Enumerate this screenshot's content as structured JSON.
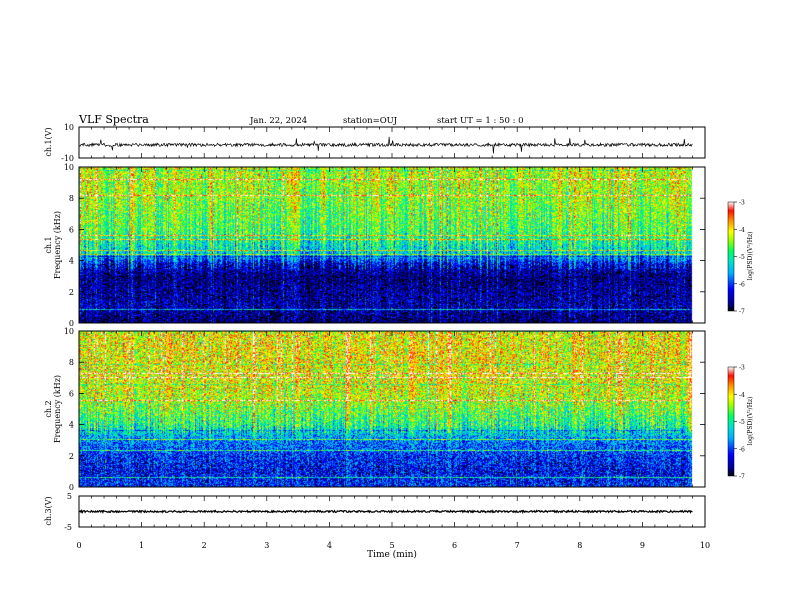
{
  "header": {
    "title": "VLF Spectra",
    "date": "Jan. 22, 2024",
    "station": "station=OUJ",
    "start": "start UT =  1 : 50 : 0"
  },
  "colors": {
    "axis": "#000000",
    "colormap": [
      "#000080",
      "#0000ff",
      "#00a0ff",
      "#00e0e0",
      "#00ff80",
      "#a0ff00",
      "#ffff00",
      "#ffa000",
      "#ff2000",
      "#ffffff"
    ]
  },
  "chart_data": [
    {
      "type": "line",
      "panel": "ch1-waveform",
      "ylabel": "ch.1(V)",
      "ylim": [
        -10,
        10
      ],
      "ytick_labels": [
        "10",
        "-10"
      ],
      "xlim": [
        0,
        10
      ],
      "signal": {
        "baseline": -1.5,
        "noise_amplitude": 1.0,
        "end_time": 9.8
      }
    },
    {
      "type": "heatmap",
      "panel": "ch1-spectrogram",
      "ylabel": "ch.1",
      "ylabel2": "Frequency (kHz)",
      "ylim": [
        0,
        10
      ],
      "yticks": [
        "0",
        "2",
        "4",
        "6",
        "8",
        "10"
      ],
      "xlim": [
        0,
        10
      ],
      "end_time": 9.8,
      "colorbar": {
        "label": "log(PSD)(V²/Hz)",
        "range": [
          -7,
          -3
        ],
        "ticks": [
          "-3",
          "-4",
          "-5",
          "-6",
          "-7"
        ]
      },
      "profile_log_psd": [
        {
          "f": 0,
          "v": -6.8
        },
        {
          "f": 1,
          "v": -6.5
        },
        {
          "f": 2,
          "v": -6.6
        },
        {
          "f": 3,
          "v": -6.7
        },
        {
          "f": 3.8,
          "v": -6.3
        },
        {
          "f": 4.5,
          "v": -5.2
        },
        {
          "f": 6,
          "v": -4.5
        },
        {
          "f": 8,
          "v": -4.2
        },
        {
          "f": 10,
          "v": -4.0
        }
      ]
    },
    {
      "type": "heatmap",
      "panel": "ch2-spectrogram",
      "ylabel": "ch.2",
      "ylabel2": "Frequency (kHz)",
      "ylim": [
        0,
        10
      ],
      "yticks": [
        "0",
        "2",
        "4",
        "6",
        "8",
        "10"
      ],
      "xlim": [
        0,
        10
      ],
      "end_time": 9.8,
      "colorbar": {
        "label": "log(PSD)(V²/Hz)",
        "range": [
          -7,
          -3
        ],
        "ticks": [
          "-3",
          "-4",
          "-5",
          "-6",
          "-7"
        ]
      },
      "profile_log_psd": [
        {
          "f": 0,
          "v": -6.0
        },
        {
          "f": 1,
          "v": -6.2
        },
        {
          "f": 2,
          "v": -6.0
        },
        {
          "f": 3,
          "v": -5.6
        },
        {
          "f": 4,
          "v": -4.7
        },
        {
          "f": 6,
          "v": -3.9
        },
        {
          "f": 8,
          "v": -3.7
        },
        {
          "f": 10,
          "v": -3.7
        }
      ]
    },
    {
      "type": "line",
      "panel": "ch3-waveform",
      "ylabel": "ch.3(V)",
      "ylim": [
        -5,
        5
      ],
      "ytick_labels": [
        "5",
        "-5"
      ],
      "xlim": [
        0,
        10
      ],
      "xlabel": "Time (min)",
      "xticks": [
        "0",
        "1",
        "2",
        "3",
        "4",
        "5",
        "6",
        "7",
        "8",
        "9",
        "10"
      ],
      "signal": {
        "baseline": 0,
        "noise_amplitude": 0.3,
        "end_time": 9.8
      }
    }
  ]
}
